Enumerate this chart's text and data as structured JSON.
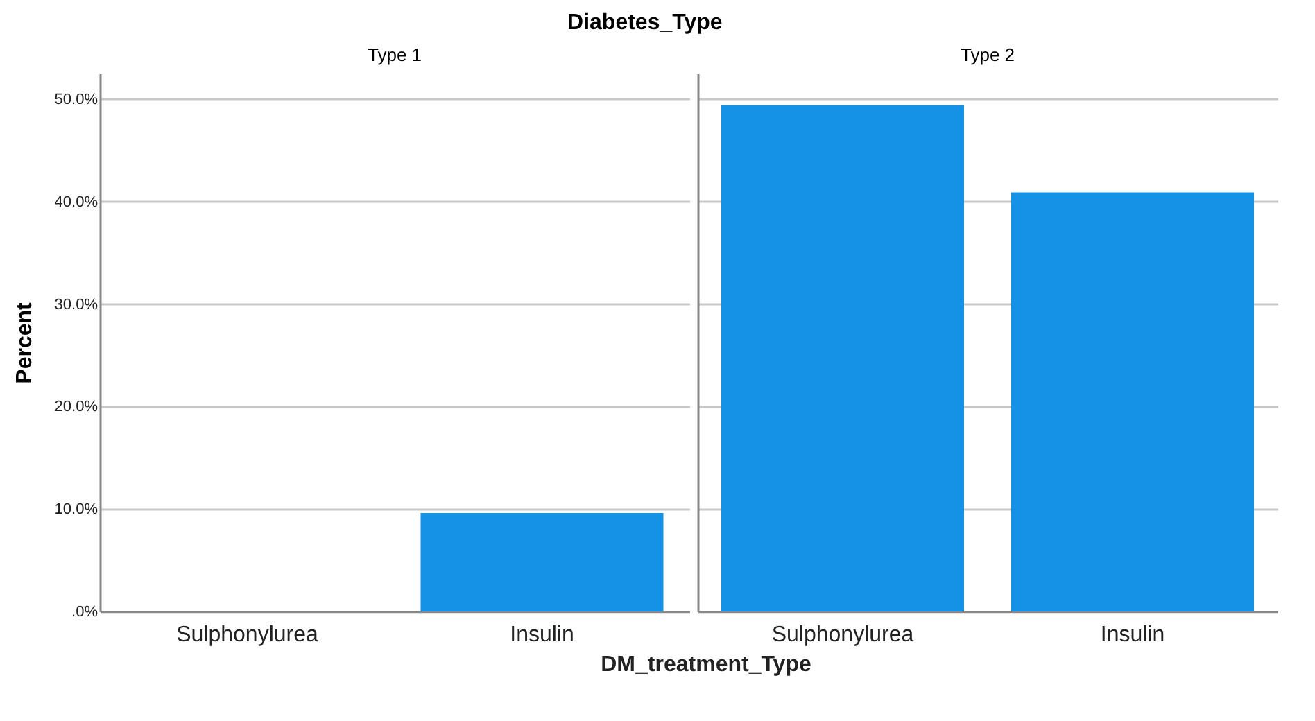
{
  "chart_data": [
    {
      "type": "bar",
      "title": "Diabetes_Type",
      "subtitle": "Type 1",
      "xlabel": "DM_treatment_Type",
      "ylabel": "Percent",
      "categories": [
        "Sulphonylurea",
        "Insulin"
      ],
      "values": [
        0,
        9.6
      ],
      "color": "#1591e5",
      "ylim": [
        0,
        52.5
      ],
      "yticks": [
        {
          "value": 0,
          "label": ".0%"
        },
        {
          "value": 10,
          "label": "10.0%"
        },
        {
          "value": 20,
          "label": "20.0%"
        },
        {
          "value": 30,
          "label": "30.0%"
        },
        {
          "value": 40,
          "label": "40.0%"
        },
        {
          "value": 50,
          "label": "50.0%"
        }
      ],
      "grid": "y"
    },
    {
      "type": "bar",
      "subtitle": "Type 2",
      "categories": [
        "Sulphonylurea",
        "Insulin"
      ],
      "values": [
        49.4,
        40.9
      ],
      "color": "#1591e5",
      "ylim": [
        0,
        52.5
      ],
      "yticks": [
        {
          "value": 0,
          "label": null
        },
        {
          "value": 10,
          "label": null
        },
        {
          "value": 20,
          "label": null
        },
        {
          "value": 30,
          "label": null
        },
        {
          "value": 40,
          "label": null
        },
        {
          "value": 50,
          "label": null
        }
      ],
      "grid": "y",
      "tick_labels": "x"
    }
  ]
}
